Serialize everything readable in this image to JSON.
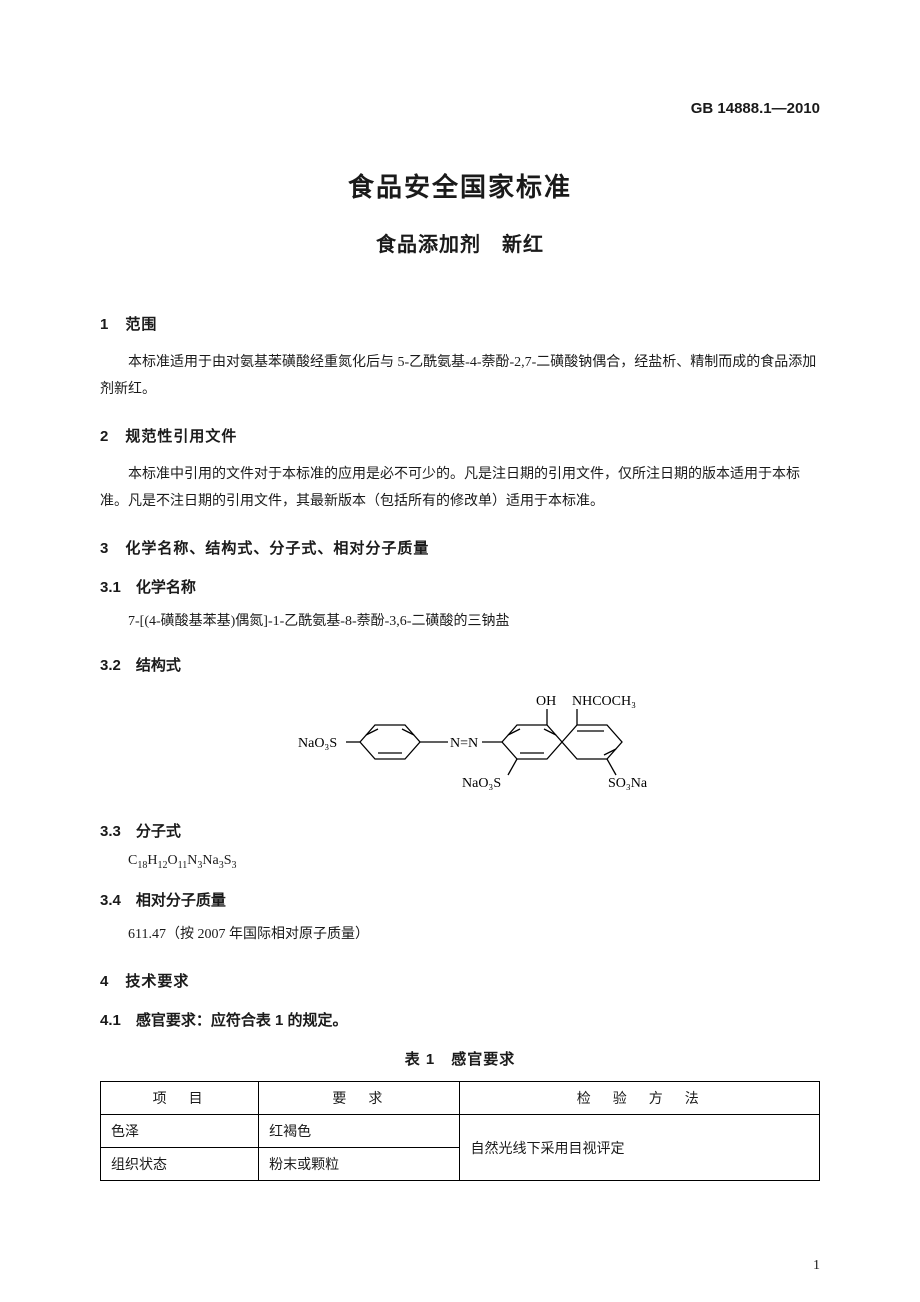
{
  "header": {
    "standard_code": "GB 14888.1—2010"
  },
  "titles": {
    "main": "食品安全国家标准",
    "sub": "食品添加剂　新红"
  },
  "sections": {
    "s1": {
      "num_title": "1　范围",
      "para": "本标准适用于由对氨基苯磺酸经重氮化后与 5-乙酰氨基-4-萘酚-2,7-二磺酸钠偶合，经盐析、精制而成的食品添加剂新红。"
    },
    "s2": {
      "num_title": "2　规范性引用文件",
      "para": "本标准中引用的文件对于本标准的应用是必不可少的。凡是注日期的引用文件，仅所注日期的版本适用于本标准。凡是不注日期的引用文件，其最新版本（包括所有的修改单）适用于本标准。"
    },
    "s3": {
      "num_title": "3　化学名称、结构式、分子式、相对分子质量",
      "s3_1": {
        "head": "3.1　化学名称",
        "text": "7-[(4-磺酸基苯基)偶氮]-1-乙酰氨基-8-萘酚-3,6-二磺酸的三钠盐"
      },
      "s3_2": {
        "head": "3.2　结构式"
      },
      "s3_3": {
        "head": "3.3　分子式"
      },
      "s3_4": {
        "head": "3.4　相对分子质量",
        "text": "611.47（按 2007 年国际相对原子质量）"
      }
    },
    "s4": {
      "num_title": "4　技术要求",
      "s4_1": {
        "head": "4.1　感官要求：应符合表 1 的规定。"
      }
    }
  },
  "structure_labels": {
    "left": "NaO₃S",
    "azo": "N=N",
    "oh": "OH",
    "nhcoch3": "NHCOCH₃",
    "so3na_left": "NaO₃S",
    "so3na_right": "SO₃Na"
  },
  "molecular_formula": {
    "parts": [
      {
        "t": "C",
        "s": "18"
      },
      {
        "t": "H",
        "s": "12"
      },
      {
        "t": "O",
        "s": "11"
      },
      {
        "t": "N",
        "s": "3"
      },
      {
        "t": "Na",
        "s": "3"
      },
      {
        "t": "S",
        "s": "3"
      }
    ]
  },
  "table1": {
    "title": "表 1　感官要求",
    "columns": [
      "项　目",
      "要　求",
      "检　验　方　法"
    ],
    "rows": [
      {
        "item": "色泽",
        "req": "红褐色"
      },
      {
        "item": "组织状态",
        "req": "粉末或颗粒"
      }
    ],
    "method_merged": "自然光线下采用目视评定"
  },
  "page_number": "1",
  "style": {
    "text_color": "#1a1a1a",
    "bg": "#ffffff",
    "border": "#000000",
    "title_fontsize": 26,
    "sub_fontsize": 20,
    "body_fontsize": 14,
    "heading_font": "SimHei",
    "body_font": "SimSun"
  }
}
